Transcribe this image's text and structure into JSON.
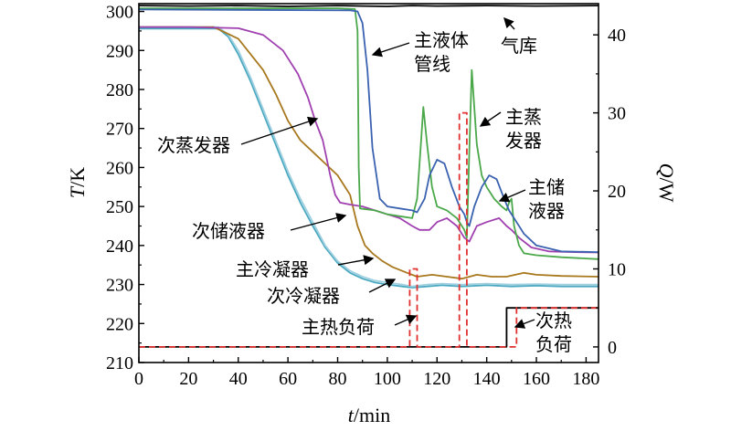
{
  "chart_data": {
    "type": "line",
    "x_axis": {
      "label_var": "t",
      "label_unit": "/min",
      "range": [
        0,
        185
      ],
      "ticks": [
        0,
        20,
        40,
        60,
        80,
        100,
        120,
        140,
        160,
        180
      ]
    },
    "y_axis_left": {
      "label_var": "T",
      "label_unit": "/K",
      "range": [
        210,
        302
      ],
      "ticks": [
        210,
        220,
        230,
        240,
        250,
        260,
        270,
        280,
        290,
        300
      ]
    },
    "y_axis_right": {
      "label_var": "Q",
      "label_unit": "/W",
      "range": [
        -2,
        44
      ],
      "ticks": [
        0,
        10,
        20,
        30,
        40
      ]
    },
    "grid": false,
    "series": [
      {
        "name": "气库",
        "axis": "left",
        "color": "#000000",
        "points": [
          [
            0,
            301.5
          ],
          [
            20,
            301.4
          ],
          [
            40,
            301.5
          ],
          [
            60,
            301.3
          ],
          [
            80,
            301.5
          ],
          [
            90,
            301.4
          ],
          [
            100,
            301.3
          ],
          [
            110,
            301.5
          ],
          [
            120,
            301.4
          ],
          [
            140,
            301.5
          ],
          [
            160,
            301.4
          ],
          [
            185,
            301.5
          ]
        ]
      },
      {
        "name": "主液体管线",
        "axis": "left",
        "color": "#3a62b0",
        "points": [
          [
            0,
            300.5
          ],
          [
            85,
            300.3
          ],
          [
            88,
            300
          ],
          [
            90,
            297
          ],
          [
            92,
            285
          ],
          [
            94,
            265
          ],
          [
            97,
            252
          ],
          [
            100,
            250
          ],
          [
            105,
            249.5
          ],
          [
            110,
            249
          ],
          [
            112,
            248.5
          ],
          [
            115,
            252
          ],
          [
            117,
            258
          ],
          [
            120,
            262
          ],
          [
            123,
            261
          ],
          [
            126,
            255
          ],
          [
            129,
            250
          ],
          [
            131,
            248
          ],
          [
            132,
            246
          ],
          [
            133,
            245
          ],
          [
            135,
            250
          ],
          [
            138,
            255
          ],
          [
            141,
            258
          ],
          [
            144,
            257
          ],
          [
            147,
            252
          ],
          [
            149,
            249
          ],
          [
            152,
            246
          ],
          [
            155,
            243
          ],
          [
            160,
            240
          ],
          [
            170,
            238.5
          ],
          [
            185,
            238.3
          ]
        ]
      },
      {
        "name": "主蒸发器",
        "axis": "left",
        "color": "#4aa84a",
        "points": [
          [
            0,
            300.8
          ],
          [
            80,
            300.8
          ],
          [
            87,
            300.6
          ],
          [
            88,
            295
          ],
          [
            88.5,
            260
          ],
          [
            89,
            249.5
          ],
          [
            95,
            249
          ],
          [
            100,
            248
          ],
          [
            105,
            247.5
          ],
          [
            110,
            247
          ],
          [
            112,
            252
          ],
          [
            113.5,
            266
          ],
          [
            114.5,
            275.5
          ],
          [
            116,
            266
          ],
          [
            118,
            255
          ],
          [
            120,
            250
          ],
          [
            124,
            249
          ],
          [
            128,
            247
          ],
          [
            131,
            244
          ],
          [
            132,
            242
          ],
          [
            133,
            264
          ],
          [
            134,
            285
          ],
          [
            136,
            266
          ],
          [
            138,
            258
          ],
          [
            140,
            255
          ],
          [
            143,
            252
          ],
          [
            146,
            250
          ],
          [
            148,
            249
          ],
          [
            149,
            251
          ],
          [
            150,
            252
          ],
          [
            151,
            245
          ],
          [
            153,
            240
          ],
          [
            155,
            238
          ],
          [
            160,
            237.5
          ],
          [
            170,
            237
          ],
          [
            185,
            236.5
          ]
        ]
      },
      {
        "name": "次蒸发器",
        "axis": "left",
        "color": "#a040b0",
        "points": [
          [
            0,
            296
          ],
          [
            20,
            296
          ],
          [
            40,
            295.7
          ],
          [
            50,
            294
          ],
          [
            58,
            290
          ],
          [
            64,
            284
          ],
          [
            68,
            278
          ],
          [
            71,
            272
          ],
          [
            74,
            267
          ],
          [
            77,
            258
          ],
          [
            79,
            253
          ],
          [
            81,
            251
          ],
          [
            85,
            250.5
          ],
          [
            90,
            250
          ],
          [
            95,
            249
          ],
          [
            100,
            248
          ],
          [
            105,
            247
          ],
          [
            110,
            245
          ],
          [
            113,
            244
          ],
          [
            117,
            244
          ],
          [
            120,
            246
          ],
          [
            124,
            247
          ],
          [
            128,
            245
          ],
          [
            131,
            242
          ],
          [
            133,
            241
          ],
          [
            136,
            245
          ],
          [
            140,
            246
          ],
          [
            145,
            247
          ],
          [
            148,
            245
          ],
          [
            150,
            244
          ],
          [
            153,
            242
          ],
          [
            158,
            239.5
          ],
          [
            165,
            238.5
          ],
          [
            175,
            238.3
          ],
          [
            185,
            238.2
          ]
        ]
      },
      {
        "name": "次储液器",
        "axis": "left",
        "color": "#a8781e",
        "points": [
          [
            0,
            296
          ],
          [
            30,
            296
          ],
          [
            40,
            293
          ],
          [
            50,
            285
          ],
          [
            55,
            279
          ],
          [
            60,
            272
          ],
          [
            65,
            267
          ],
          [
            70,
            264
          ],
          [
            75,
            261
          ],
          [
            80,
            258
          ],
          [
            85,
            253
          ],
          [
            88,
            245
          ],
          [
            91,
            240
          ],
          [
            94,
            238
          ],
          [
            98,
            236
          ],
          [
            102,
            234.5
          ],
          [
            108,
            233
          ],
          [
            112,
            232
          ],
          [
            118,
            232.5
          ],
          [
            124,
            232
          ],
          [
            130,
            231.5
          ],
          [
            136,
            232.5
          ],
          [
            142,
            232
          ],
          [
            148,
            232
          ],
          [
            155,
            233
          ],
          [
            160,
            232.5
          ],
          [
            170,
            232.2
          ],
          [
            185,
            232
          ]
        ]
      },
      {
        "name": "主冷凝器",
        "axis": "left",
        "color": "#9fd0e0",
        "points": [
          [
            0,
            296
          ],
          [
            32,
            296
          ],
          [
            36,
            294
          ],
          [
            40,
            290
          ],
          [
            45,
            283
          ],
          [
            50,
            275
          ],
          [
            55,
            267
          ],
          [
            60,
            259
          ],
          [
            65,
            252
          ],
          [
            70,
            246
          ],
          [
            75,
            240
          ],
          [
            80,
            236
          ],
          [
            85,
            233.5
          ],
          [
            90,
            232
          ],
          [
            95,
            231
          ],
          [
            100,
            230.5
          ],
          [
            106,
            230
          ],
          [
            110,
            229.5
          ],
          [
            116,
            230
          ],
          [
            122,
            230.2
          ],
          [
            130,
            230
          ],
          [
            140,
            230.2
          ],
          [
            150,
            230
          ],
          [
            160,
            230.1
          ],
          [
            170,
            230
          ],
          [
            185,
            230
          ]
        ]
      },
      {
        "name": "次冷凝器",
        "axis": "left",
        "color": "#4aa8c0",
        "points": [
          [
            0,
            295.6
          ],
          [
            32,
            295.6
          ],
          [
            36,
            293.5
          ],
          [
            40,
            289
          ],
          [
            45,
            282
          ],
          [
            50,
            274
          ],
          [
            55,
            266
          ],
          [
            60,
            258
          ],
          [
            65,
            251
          ],
          [
            70,
            245
          ],
          [
            75,
            239.5
          ],
          [
            80,
            235.5
          ],
          [
            85,
            233
          ],
          [
            90,
            231.5
          ],
          [
            95,
            230.5
          ],
          [
            100,
            230
          ],
          [
            106,
            229.5
          ],
          [
            110,
            229.2
          ],
          [
            116,
            229.5
          ],
          [
            122,
            229.8
          ],
          [
            130,
            229.5
          ],
          [
            140,
            229.8
          ],
          [
            150,
            229.5
          ],
          [
            160,
            229.7
          ],
          [
            170,
            229.5
          ],
          [
            185,
            229.5
          ]
        ]
      },
      {
        "name": "主热负荷",
        "axis": "right",
        "color": "#e03030",
        "dashed": true,
        "points": [
          [
            0,
            0
          ],
          [
            109,
            0
          ],
          [
            109,
            10
          ],
          [
            112,
            10
          ],
          [
            112,
            0
          ],
          [
            129,
            0
          ],
          [
            129,
            30
          ],
          [
            132,
            30
          ],
          [
            132,
            0
          ],
          [
            152,
            0
          ],
          [
            152,
            5
          ],
          [
            185,
            5
          ]
        ]
      },
      {
        "name": "次热负荷",
        "axis": "right",
        "color": "#000000",
        "points": [
          [
            0,
            0
          ],
          [
            148,
            0
          ],
          [
            148,
            5
          ],
          [
            185,
            5
          ]
        ]
      }
    ],
    "annotations": [
      {
        "label": "气库",
        "lines": [
          "气库"
        ]
      },
      {
        "label": "主液体管线",
        "lines": [
          "主液体",
          "管线"
        ]
      },
      {
        "label": "主蒸发器",
        "lines": [
          "主蒸",
          "发器"
        ]
      },
      {
        "label": "次蒸发器",
        "lines": [
          "次蒸发器"
        ]
      },
      {
        "label": "主储液器",
        "lines": [
          "主储",
          "液器"
        ]
      },
      {
        "label": "次储液器",
        "lines": [
          "次储液器"
        ]
      },
      {
        "label": "主冷凝器",
        "lines": [
          "主冷凝器"
        ]
      },
      {
        "label": "次冷凝器",
        "lines": [
          "次冷凝器"
        ]
      },
      {
        "label": "主热负荷",
        "lines": [
          "主热负荷"
        ]
      },
      {
        "label": "次热负荷",
        "lines": [
          "次热",
          "负荷"
        ]
      }
    ]
  }
}
